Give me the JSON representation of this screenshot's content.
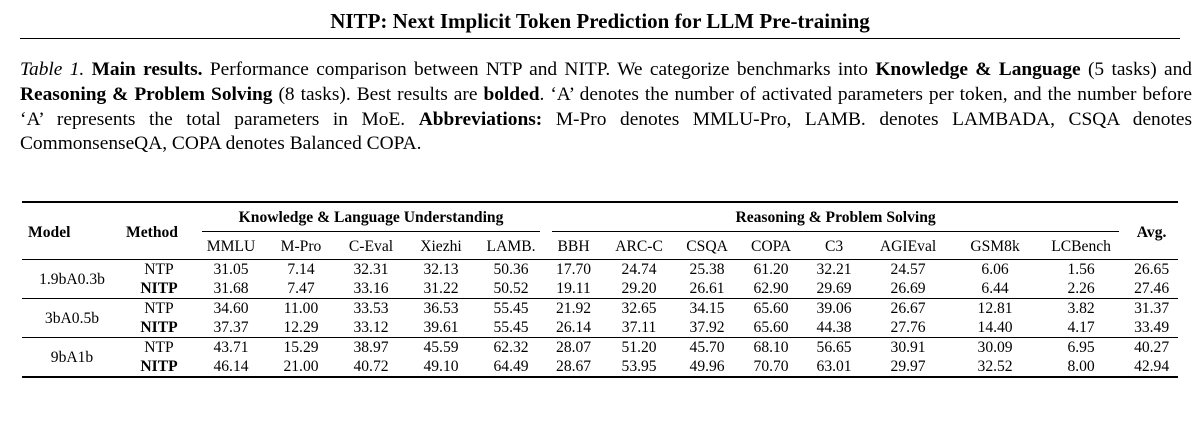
{
  "header": {
    "title": "NITP: Next Implicit Token Prediction for LLM Pre-training"
  },
  "caption": {
    "lead": "Table 1.",
    "main_results": "Main results.",
    "t1": " Performance comparison between NTP and NITP. We categorize benchmarks into ",
    "kl": "Knowledge & Language",
    "t2": " (5 tasks) and ",
    "rp": "Reasoning & Problem Solving",
    "t3": " (8 tasks). Best results are ",
    "bolded": "bolded",
    "t4": ". ‘A’ denotes the number of activated parameters per token, and the number before ‘A’ represents the total parameters in MoE. ",
    "abbr": "Abbreviations:",
    "t5": " M-Pro denotes MMLU-Pro, LAMB. denotes LAMBADA, CSQA denotes CommonsenseQA, COPA denotes Balanced COPA."
  },
  "table": {
    "col_model": "Model",
    "col_method": "Method",
    "col_avg": "Avg.",
    "group_knowledge": "Knowledge & Language Understanding",
    "group_reasoning": "Reasoning & Problem Solving",
    "benchmarks": [
      "MMLU",
      "M-Pro",
      "C-Eval",
      "Xiezhi",
      "LAMB.",
      "BBH",
      "ARC-C",
      "CSQA",
      "COPA",
      "C3",
      "AGIEval",
      "GSM8k",
      "LCBench"
    ],
    "rows": [
      {
        "model": "1.9bA0.3b",
        "ntp": {
          "method": "NTP",
          "values": [
            "31.05",
            "7.14",
            "32.31",
            "32.13",
            "50.36",
            "17.70",
            "24.74",
            "25.38",
            "61.20",
            "32.21",
            "24.57",
            "6.06",
            "1.56"
          ],
          "avg": "26.65"
        },
        "nitp": {
          "method": "NITP",
          "values": [
            "31.68",
            "7.47",
            "33.16",
            "31.22",
            "50.52",
            "19.11",
            "29.20",
            "26.61",
            "62.90",
            "29.69",
            "26.69",
            "6.44",
            "2.26"
          ],
          "avg": "27.46"
        }
      },
      {
        "model": "3bA0.5b",
        "ntp": {
          "method": "NTP",
          "values": [
            "34.60",
            "11.00",
            "33.53",
            "36.53",
            "55.45",
            "21.92",
            "32.65",
            "34.15",
            "65.60",
            "39.06",
            "26.67",
            "12.81",
            "3.82"
          ],
          "avg": "31.37"
        },
        "nitp": {
          "method": "NITP",
          "values": [
            "37.37",
            "12.29",
            "33.12",
            "39.61",
            "55.45",
            "26.14",
            "37.11",
            "37.92",
            "65.60",
            "44.38",
            "27.76",
            "14.40",
            "4.17"
          ],
          "avg": "33.49"
        }
      },
      {
        "model": "9bA1b",
        "ntp": {
          "method": "NTP",
          "values": [
            "43.71",
            "15.29",
            "38.97",
            "45.59",
            "62.32",
            "28.07",
            "51.20",
            "45.70",
            "68.10",
            "56.65",
            "30.91",
            "30.09",
            "6.95"
          ],
          "avg": "40.27"
        },
        "nitp": {
          "method": "NITP",
          "values": [
            "46.14",
            "21.00",
            "40.72",
            "49.10",
            "64.49",
            "28.67",
            "53.95",
            "49.96",
            "70.70",
            "63.01",
            "29.97",
            "32.52",
            "8.00"
          ],
          "avg": "42.94"
        }
      }
    ]
  }
}
